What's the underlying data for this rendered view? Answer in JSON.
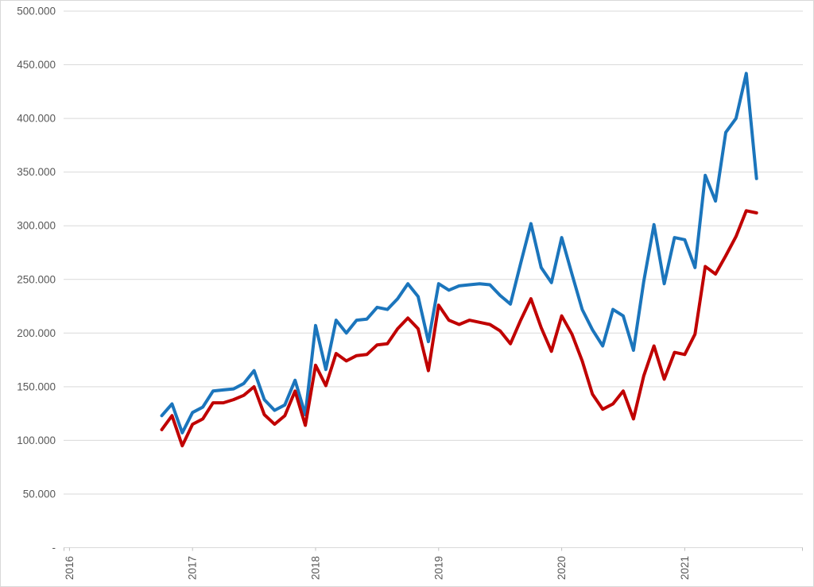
{
  "chart_data": {
    "type": "line",
    "title": "",
    "xlabel": "",
    "ylabel": "",
    "legend": "none",
    "grid": true,
    "number_format": "thousands-dot",
    "ylim": [
      0,
      500000
    ],
    "y_tick_step": 50000,
    "y_tick_labels": [
      "-",
      "50.000",
      "100.000",
      "150.000",
      "200.000",
      "250.000",
      "300.000",
      "350.000",
      "400.000",
      "450.000",
      "500.000"
    ],
    "x_year_labels": [
      "2016",
      "2017",
      "2018",
      "2019",
      "2020",
      "2021"
    ],
    "x": [
      "2016-10",
      "2016-11",
      "2016-12",
      "2017-01",
      "2017-02",
      "2017-03",
      "2017-04",
      "2017-05",
      "2017-06",
      "2017-07",
      "2017-08",
      "2017-09",
      "2017-10",
      "2017-11",
      "2017-12",
      "2018-01",
      "2018-02",
      "2018-03",
      "2018-04",
      "2018-05",
      "2018-06",
      "2018-07",
      "2018-08",
      "2018-09",
      "2018-10",
      "2018-11",
      "2018-12",
      "2019-01",
      "2019-02",
      "2019-03",
      "2019-04",
      "2019-05",
      "2019-06",
      "2019-07",
      "2019-08",
      "2019-09",
      "2019-10",
      "2019-11",
      "2019-12",
      "2020-01",
      "2020-02",
      "2020-03",
      "2020-04",
      "2020-05",
      "2020-06",
      "2020-07",
      "2020-08",
      "2020-09",
      "2020-10",
      "2020-11",
      "2020-12",
      "2021-01",
      "2021-02",
      "2021-03",
      "2021-04",
      "2021-05",
      "2021-06",
      "2021-07",
      "2021-08"
    ],
    "series": [
      {
        "name": "series-1-blue",
        "color": "#1B75BC",
        "values": [
          123000,
          134000,
          107000,
          126000,
          131000,
          146000,
          147000,
          148000,
          153000,
          165000,
          138000,
          128000,
          133000,
          156000,
          124000,
          207000,
          166000,
          212000,
          200000,
          212000,
          213000,
          224000,
          222000,
          232000,
          246000,
          234000,
          192000,
          246000,
          240000,
          244000,
          245000,
          246000,
          245000,
          235000,
          227000,
          265000,
          302000,
          261000,
          247000,
          289000,
          255000,
          222000,
          203000,
          188000,
          222000,
          216000,
          184000,
          248000,
          301000,
          246000,
          289000,
          287000,
          261000,
          347000,
          323000,
          387000,
          400000,
          442000,
          344000
        ]
      },
      {
        "name": "series-2-red",
        "color": "#C00000",
        "values": [
          110000,
          123000,
          95000,
          115000,
          120000,
          135000,
          135000,
          138000,
          142000,
          150000,
          124000,
          115000,
          123000,
          146000,
          114000,
          170000,
          151000,
          181000,
          174000,
          179000,
          180000,
          189000,
          190000,
          204000,
          214000,
          204000,
          165000,
          226000,
          212000,
          208000,
          212000,
          210000,
          208000,
          202000,
          190000,
          212000,
          232000,
          205000,
          183000,
          216000,
          199000,
          174000,
          143000,
          129000,
          134000,
          146000,
          120000,
          160000,
          188000,
          157000,
          182000,
          180000,
          199000,
          262000,
          255000,
          272000,
          290000,
          314000,
          312000
        ]
      }
    ],
    "colors": {
      "gridline": "#D9D9D9",
      "axis_line": "#D9D9D9",
      "tick_mark": "#BFBFBF",
      "tick_label": "#595959",
      "chart_border": "#D9D9D9",
      "background": "#FFFFFF"
    }
  }
}
